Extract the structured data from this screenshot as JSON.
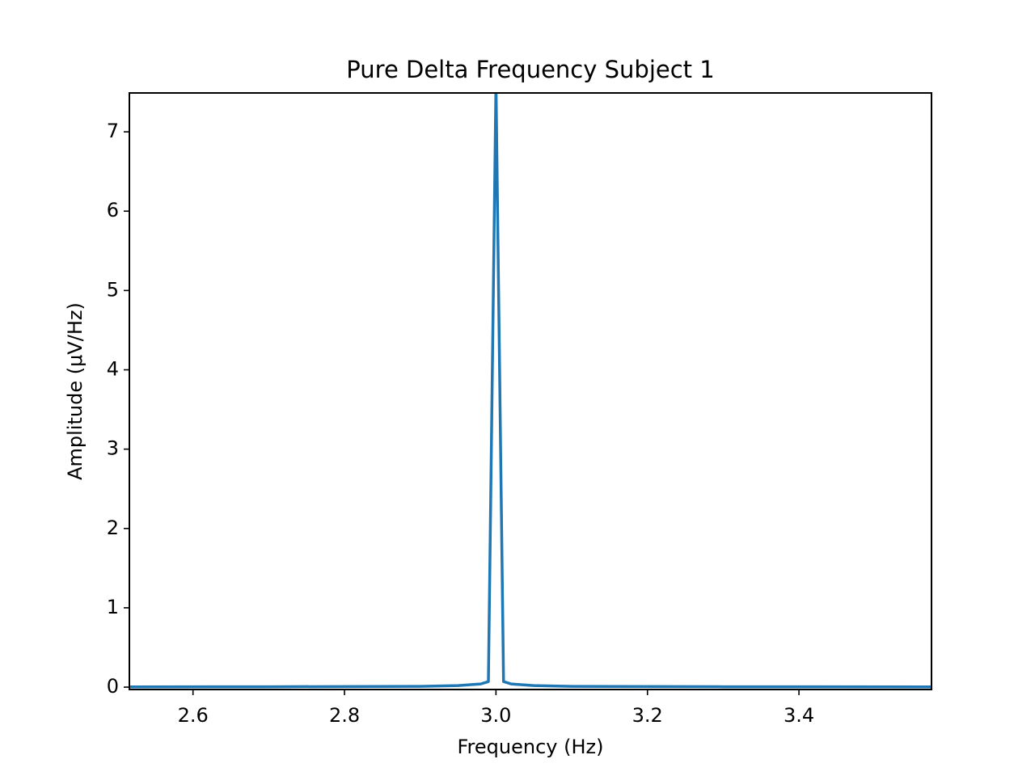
{
  "chart_data": {
    "type": "line",
    "title": "Pure Delta Frequency Subject 1",
    "x_label": "Frequency (Hz)",
    "y_label": "Amplitude (μV/Hz)",
    "x": [
      2.516,
      2.7,
      2.9,
      2.95,
      2.98,
      2.99,
      3.0,
      3.01,
      3.02,
      3.05,
      3.1,
      3.3,
      3.575
    ],
    "series": [
      {
        "name": "Amplitude",
        "color": "#1f77b4",
        "values": [
          0.003,
          0.005,
          0.01,
          0.02,
          0.04,
          0.07,
          7.6,
          0.07,
          0.04,
          0.02,
          0.01,
          0.005,
          0.003
        ]
      }
    ],
    "xlim": [
      2.516,
      3.575
    ],
    "ylim": [
      -0.03,
      7.49
    ],
    "xticks": [
      2.6,
      2.8,
      {
        "value": 3,
        "label": "3.0"
      },
      3.2,
      3.4
    ],
    "yticks": [
      0,
      1,
      2,
      3,
      4,
      5,
      6,
      7
    ],
    "grid": false
  }
}
